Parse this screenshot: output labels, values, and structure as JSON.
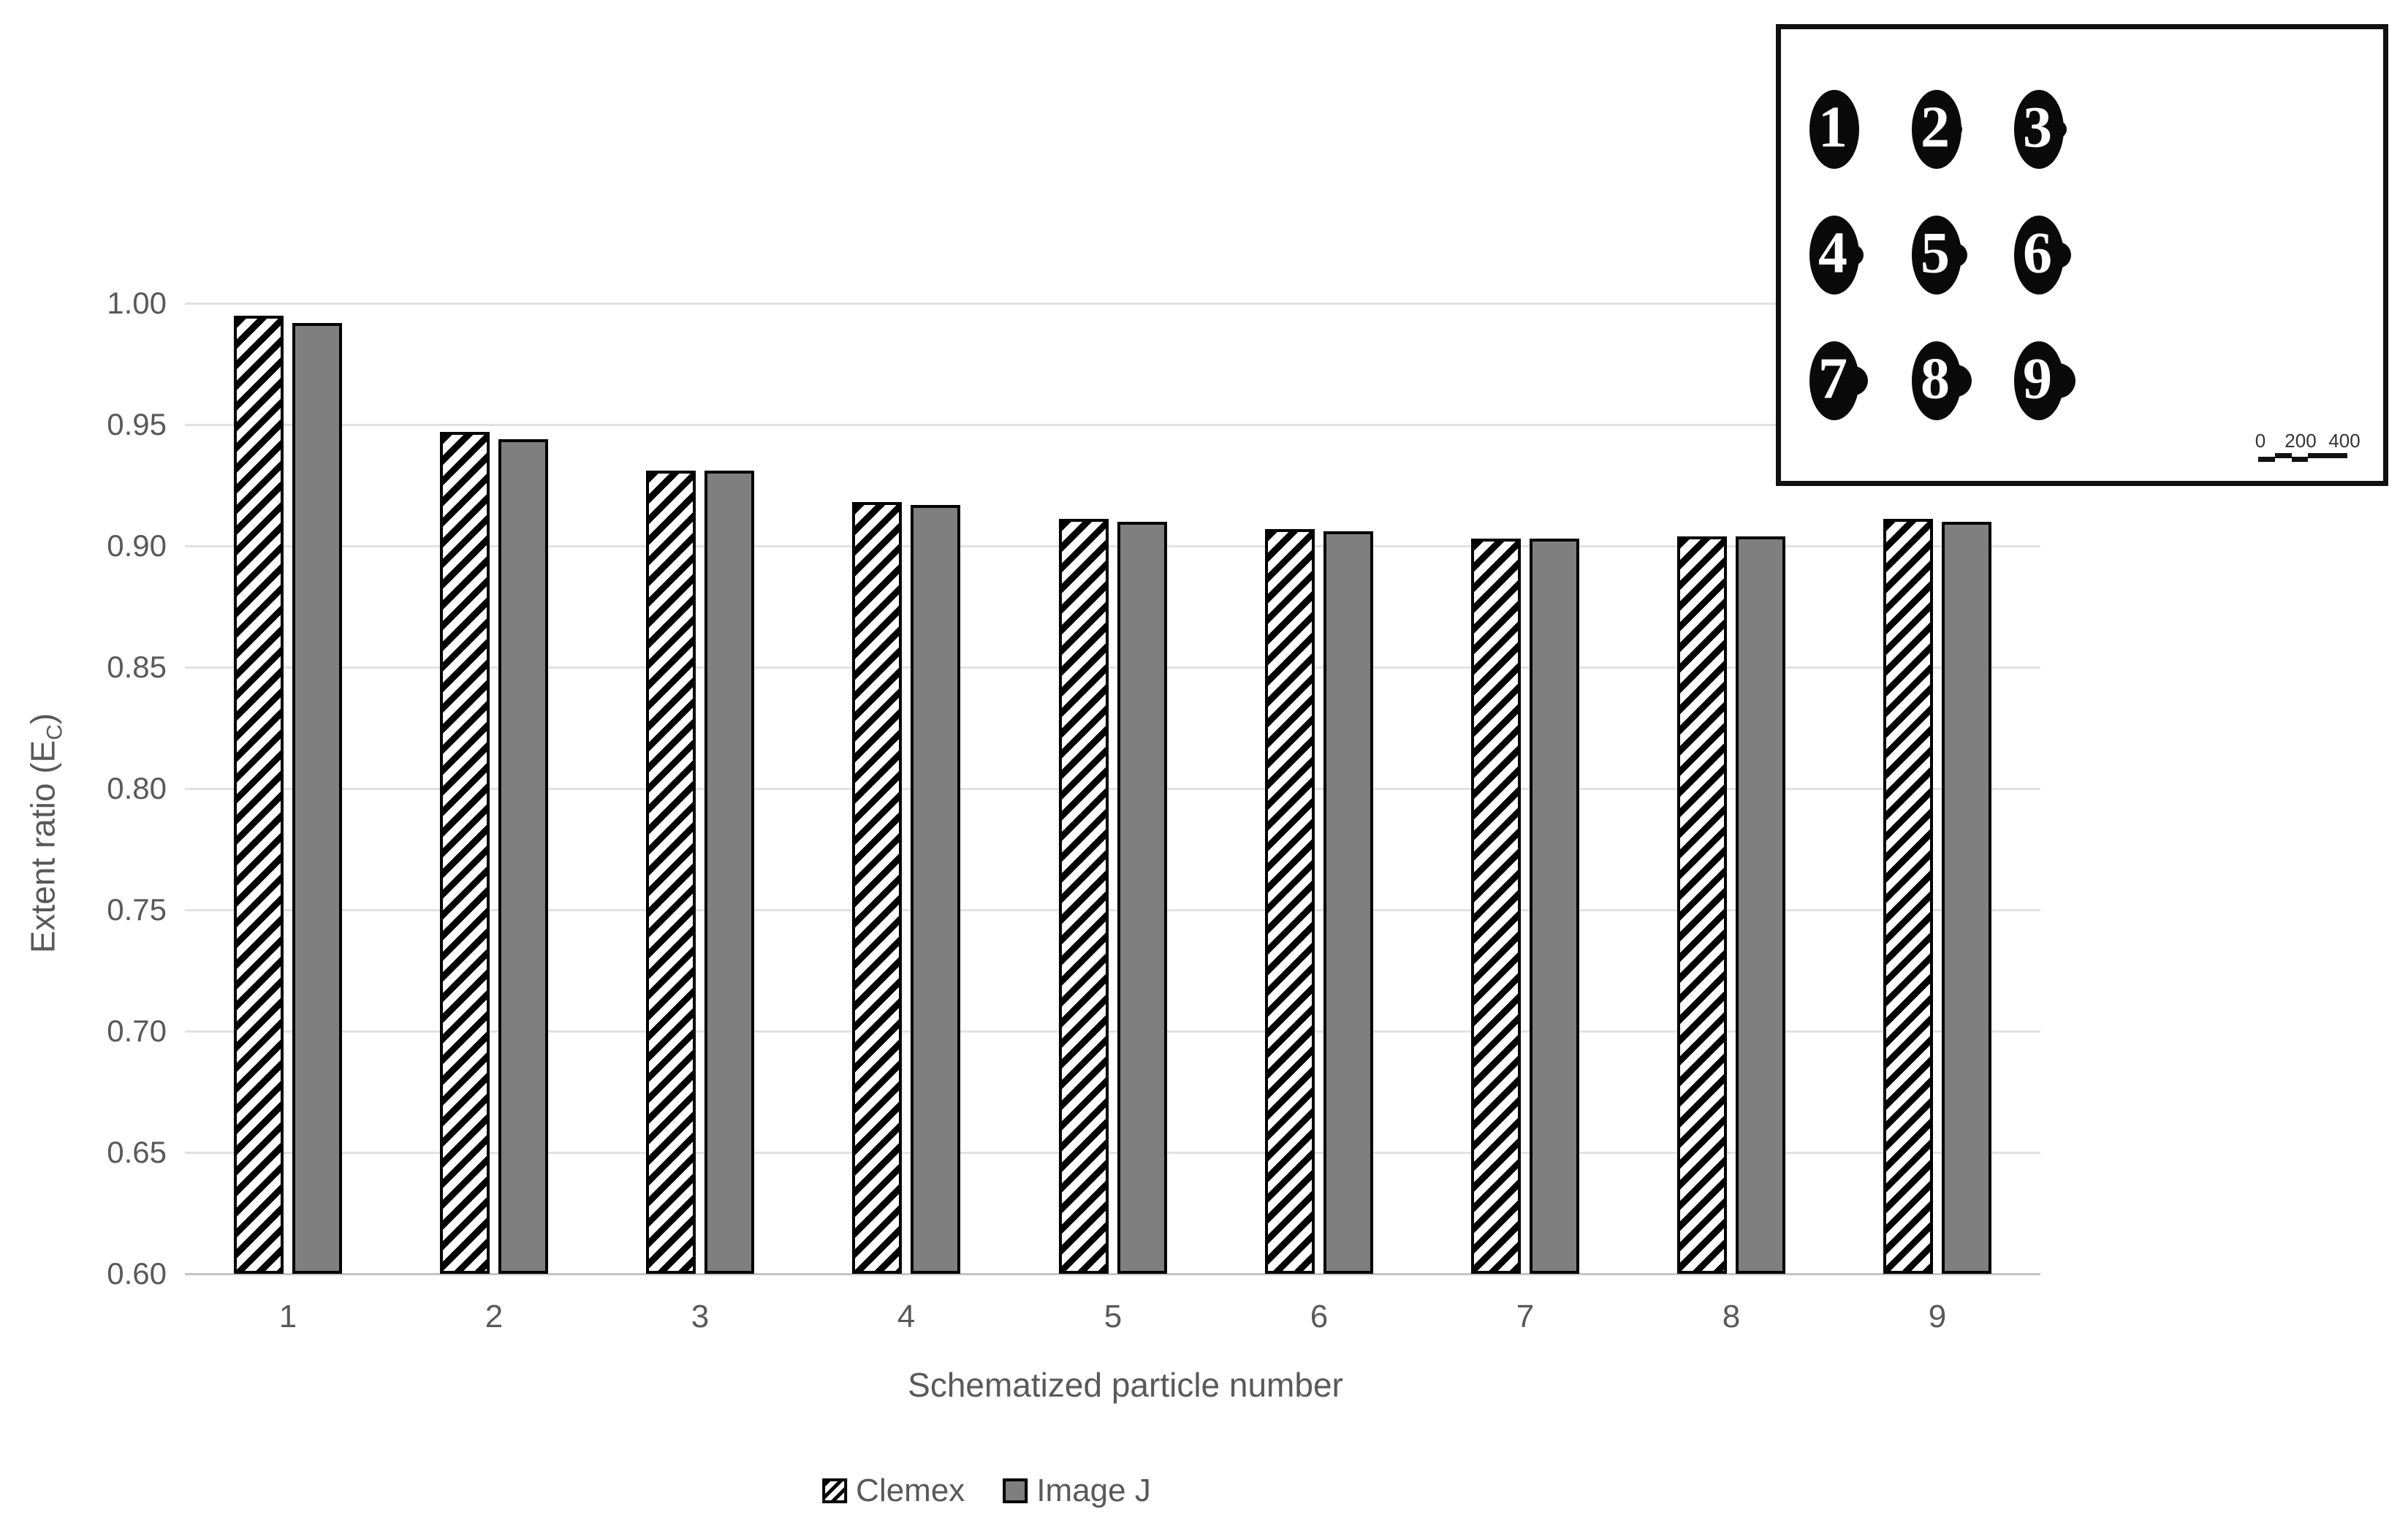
{
  "colors": {
    "bar_gray_fill": "#7f7f7f",
    "bar_border": "#000000",
    "gridline": "#e2e2e2",
    "axis_baseline": "#c4c4c4",
    "axis_text": "#595959",
    "particle_fill": "#0a0a0a",
    "particle_number": "#ffffff",
    "inset_border": "#111111"
  },
  "chart_data": {
    "type": "bar",
    "title": "",
    "xlabel": "Schematized particle number",
    "ylabel": "Extent ratio (EC)",
    "ylabel_parts": {
      "pre": "Extent ratio (E",
      "sub": "C",
      "post": ")"
    },
    "categories": [
      "1",
      "2",
      "3",
      "4",
      "5",
      "6",
      "7",
      "8",
      "9"
    ],
    "series": [
      {
        "name": "Clemex",
        "style": "hatched",
        "values": [
          0.995,
          0.947,
          0.931,
          0.918,
          0.911,
          0.907,
          0.903,
          0.904,
          0.911
        ]
      },
      {
        "name": "Image J",
        "style": "gray",
        "values": [
          0.992,
          0.944,
          0.931,
          0.917,
          0.91,
          0.906,
          0.903,
          0.904,
          0.91
        ]
      }
    ],
    "ylim": [
      0.6,
      1.0
    ],
    "ytick_values": [
      1.0,
      0.95,
      0.9,
      0.85,
      0.8,
      0.75,
      0.7,
      0.65,
      0.6
    ],
    "ytick_labels": [
      "1.00",
      "0.95",
      "0.90",
      "0.85",
      "0.80",
      "0.75",
      "0.70",
      "0.65",
      "0.60"
    ],
    "grid": true,
    "legend_position": "bottom-center"
  },
  "inset": {
    "description": "3x3 grid of schematized particles, black ellipses with increasing satellite bump",
    "particles": [
      {
        "label": "1",
        "bump_radius": 0
      },
      {
        "label": "2",
        "bump_radius": 9
      },
      {
        "label": "3",
        "bump_radius": 12
      },
      {
        "label": "4",
        "bump_radius": 14
      },
      {
        "label": "5",
        "bump_radius": 16
      },
      {
        "label": "6",
        "bump_radius": 18
      },
      {
        "label": "7",
        "bump_radius": 20
      },
      {
        "label": "8",
        "bump_radius": 22
      },
      {
        "label": "9",
        "bump_radius": 24
      }
    ],
    "scale_bar": {
      "tick_labels": [
        "0",
        "200",
        "400"
      ]
    }
  }
}
